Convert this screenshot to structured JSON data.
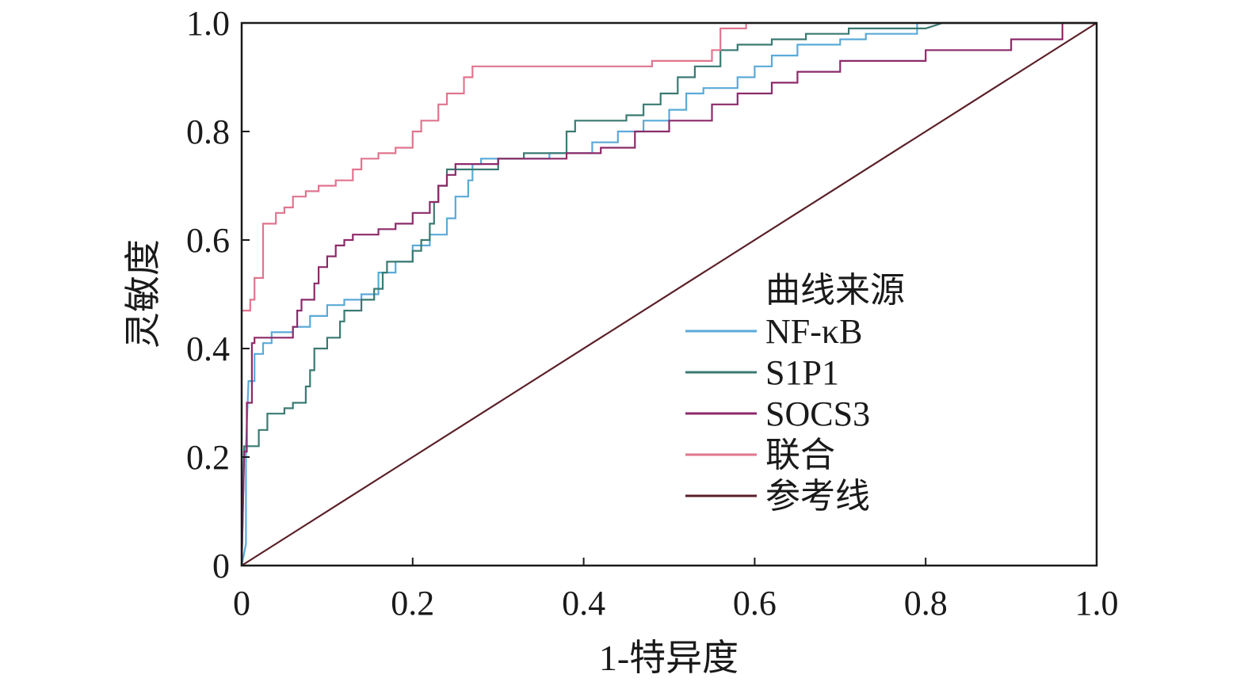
{
  "chart_data": {
    "type": "line",
    "xlabel": "1-特异度",
    "ylabel": "灵敏度",
    "xlim": [
      0,
      1
    ],
    "ylim": [
      0,
      1
    ],
    "x_ticks": [
      "0",
      "0.2",
      "0.4",
      "0.6",
      "0.8",
      "1.0"
    ],
    "y_ticks": [
      "0",
      "0.2",
      "0.4",
      "0.6",
      "0.8",
      "1.0"
    ],
    "grid": false,
    "legend": {
      "title": "曲线来源",
      "position": "right"
    },
    "series": [
      {
        "name": "NF-κB",
        "color": "#5aaad8",
        "points": [
          [
            0,
            0
          ],
          [
            0.005,
            0.04
          ],
          [
            0.005,
            0.22
          ],
          [
            0.008,
            0.34
          ],
          [
            0.015,
            0.34
          ],
          [
            0.015,
            0.39
          ],
          [
            0.025,
            0.39
          ],
          [
            0.025,
            0.41
          ],
          [
            0.035,
            0.41
          ],
          [
            0.035,
            0.43
          ],
          [
            0.06,
            0.43
          ],
          [
            0.06,
            0.44
          ],
          [
            0.08,
            0.44
          ],
          [
            0.08,
            0.46
          ],
          [
            0.1,
            0.46
          ],
          [
            0.1,
            0.48
          ],
          [
            0.12,
            0.48
          ],
          [
            0.12,
            0.49
          ],
          [
            0.14,
            0.49
          ],
          [
            0.14,
            0.5
          ],
          [
            0.16,
            0.5
          ],
          [
            0.16,
            0.54
          ],
          [
            0.18,
            0.54
          ],
          [
            0.18,
            0.56
          ],
          [
            0.2,
            0.56
          ],
          [
            0.2,
            0.59
          ],
          [
            0.22,
            0.59
          ],
          [
            0.22,
            0.61
          ],
          [
            0.24,
            0.61
          ],
          [
            0.24,
            0.64
          ],
          [
            0.25,
            0.64
          ],
          [
            0.25,
            0.68
          ],
          [
            0.265,
            0.68
          ],
          [
            0.265,
            0.71
          ],
          [
            0.27,
            0.71
          ],
          [
            0.27,
            0.74
          ],
          [
            0.28,
            0.74
          ],
          [
            0.28,
            0.75
          ],
          [
            0.3,
            0.75
          ],
          [
            0.36,
            0.75
          ],
          [
            0.36,
            0.76
          ],
          [
            0.4,
            0.76
          ],
          [
            0.41,
            0.76
          ],
          [
            0.41,
            0.78
          ],
          [
            0.44,
            0.78
          ],
          [
            0.44,
            0.8
          ],
          [
            0.47,
            0.8
          ],
          [
            0.47,
            0.82
          ],
          [
            0.5,
            0.82
          ],
          [
            0.5,
            0.84
          ],
          [
            0.52,
            0.84
          ],
          [
            0.52,
            0.87
          ],
          [
            0.54,
            0.87
          ],
          [
            0.54,
            0.88
          ],
          [
            0.58,
            0.88
          ],
          [
            0.58,
            0.9
          ],
          [
            0.6,
            0.9
          ],
          [
            0.6,
            0.92
          ],
          [
            0.62,
            0.92
          ],
          [
            0.62,
            0.94
          ],
          [
            0.65,
            0.94
          ],
          [
            0.65,
            0.96
          ],
          [
            0.7,
            0.96
          ],
          [
            0.7,
            0.97
          ],
          [
            0.73,
            0.97
          ],
          [
            0.73,
            0.98
          ],
          [
            0.79,
            0.98
          ],
          [
            0.79,
            1
          ],
          [
            1,
            1
          ]
        ]
      },
      {
        "name": "S1P1",
        "color": "#3a7a72",
        "points": [
          [
            0,
            0
          ],
          [
            0.003,
            0.22
          ],
          [
            0.02,
            0.22
          ],
          [
            0.02,
            0.25
          ],
          [
            0.03,
            0.25
          ],
          [
            0.03,
            0.28
          ],
          [
            0.05,
            0.28
          ],
          [
            0.05,
            0.29
          ],
          [
            0.06,
            0.29
          ],
          [
            0.06,
            0.3
          ],
          [
            0.075,
            0.3
          ],
          [
            0.075,
            0.33
          ],
          [
            0.08,
            0.33
          ],
          [
            0.08,
            0.36
          ],
          [
            0.085,
            0.36
          ],
          [
            0.085,
            0.4
          ],
          [
            0.1,
            0.4
          ],
          [
            0.1,
            0.42
          ],
          [
            0.115,
            0.42
          ],
          [
            0.115,
            0.45
          ],
          [
            0.12,
            0.45
          ],
          [
            0.12,
            0.47
          ],
          [
            0.14,
            0.47
          ],
          [
            0.14,
            0.49
          ],
          [
            0.155,
            0.49
          ],
          [
            0.155,
            0.51
          ],
          [
            0.165,
            0.51
          ],
          [
            0.165,
            0.54
          ],
          [
            0.17,
            0.54
          ],
          [
            0.17,
            0.56
          ],
          [
            0.2,
            0.56
          ],
          [
            0.2,
            0.58
          ],
          [
            0.21,
            0.58
          ],
          [
            0.21,
            0.6
          ],
          [
            0.22,
            0.6
          ],
          [
            0.22,
            0.63
          ],
          [
            0.225,
            0.63
          ],
          [
            0.225,
            0.67
          ],
          [
            0.23,
            0.67
          ],
          [
            0.23,
            0.7
          ],
          [
            0.24,
            0.7
          ],
          [
            0.24,
            0.73
          ],
          [
            0.3,
            0.73
          ],
          [
            0.3,
            0.75
          ],
          [
            0.33,
            0.75
          ],
          [
            0.33,
            0.76
          ],
          [
            0.38,
            0.76
          ],
          [
            0.38,
            0.8
          ],
          [
            0.39,
            0.8
          ],
          [
            0.39,
            0.82
          ],
          [
            0.45,
            0.82
          ],
          [
            0.45,
            0.83
          ],
          [
            0.47,
            0.83
          ],
          [
            0.47,
            0.85
          ],
          [
            0.49,
            0.85
          ],
          [
            0.49,
            0.87
          ],
          [
            0.51,
            0.87
          ],
          [
            0.51,
            0.9
          ],
          [
            0.53,
            0.9
          ],
          [
            0.53,
            0.92
          ],
          [
            0.56,
            0.92
          ],
          [
            0.56,
            0.95
          ],
          [
            0.58,
            0.95
          ],
          [
            0.58,
            0.96
          ],
          [
            0.62,
            0.96
          ],
          [
            0.62,
            0.97
          ],
          [
            0.66,
            0.97
          ],
          [
            0.66,
            0.98
          ],
          [
            0.71,
            0.98
          ],
          [
            0.71,
            0.99
          ],
          [
            0.8,
            0.99
          ],
          [
            0.82,
            1
          ],
          [
            1,
            1
          ]
        ]
      },
      {
        "name": "SOCS3",
        "color": "#8c2a6a",
        "points": [
          [
            0,
            0
          ],
          [
            0.003,
            0.21
          ],
          [
            0.006,
            0.21
          ],
          [
            0.006,
            0.3
          ],
          [
            0.012,
            0.3
          ],
          [
            0.012,
            0.41
          ],
          [
            0.015,
            0.41
          ],
          [
            0.015,
            0.42
          ],
          [
            0.06,
            0.42
          ],
          [
            0.06,
            0.44
          ],
          [
            0.065,
            0.44
          ],
          [
            0.065,
            0.47
          ],
          [
            0.07,
            0.47
          ],
          [
            0.07,
            0.49
          ],
          [
            0.085,
            0.49
          ],
          [
            0.085,
            0.52
          ],
          [
            0.09,
            0.52
          ],
          [
            0.09,
            0.55
          ],
          [
            0.1,
            0.55
          ],
          [
            0.1,
            0.57
          ],
          [
            0.11,
            0.57
          ],
          [
            0.11,
            0.59
          ],
          [
            0.12,
            0.59
          ],
          [
            0.12,
            0.6
          ],
          [
            0.13,
            0.6
          ],
          [
            0.13,
            0.61
          ],
          [
            0.16,
            0.61
          ],
          [
            0.16,
            0.62
          ],
          [
            0.18,
            0.62
          ],
          [
            0.18,
            0.63
          ],
          [
            0.2,
            0.63
          ],
          [
            0.2,
            0.65
          ],
          [
            0.22,
            0.65
          ],
          [
            0.22,
            0.67
          ],
          [
            0.23,
            0.67
          ],
          [
            0.23,
            0.7
          ],
          [
            0.24,
            0.7
          ],
          [
            0.24,
            0.72
          ],
          [
            0.25,
            0.72
          ],
          [
            0.25,
            0.74
          ],
          [
            0.3,
            0.74
          ],
          [
            0.3,
            0.75
          ],
          [
            0.38,
            0.75
          ],
          [
            0.38,
            0.76
          ],
          [
            0.42,
            0.76
          ],
          [
            0.42,
            0.77
          ],
          [
            0.46,
            0.77
          ],
          [
            0.46,
            0.8
          ],
          [
            0.5,
            0.8
          ],
          [
            0.5,
            0.82
          ],
          [
            0.55,
            0.82
          ],
          [
            0.55,
            0.85
          ],
          [
            0.58,
            0.85
          ],
          [
            0.58,
            0.87
          ],
          [
            0.62,
            0.87
          ],
          [
            0.62,
            0.89
          ],
          [
            0.65,
            0.89
          ],
          [
            0.65,
            0.91
          ],
          [
            0.7,
            0.91
          ],
          [
            0.7,
            0.93
          ],
          [
            0.8,
            0.93
          ],
          [
            0.8,
            0.95
          ],
          [
            0.9,
            0.95
          ],
          [
            0.9,
            0.97
          ],
          [
            0.96,
            0.97
          ],
          [
            0.96,
            1
          ],
          [
            1,
            1
          ]
        ]
      },
      {
        "name": "联合",
        "color": "#e0758e",
        "points": [
          [
            0,
            0.47
          ],
          [
            0.01,
            0.47
          ],
          [
            0.01,
            0.49
          ],
          [
            0.015,
            0.49
          ],
          [
            0.015,
            0.53
          ],
          [
            0.025,
            0.53
          ],
          [
            0.025,
            0.63
          ],
          [
            0.04,
            0.63
          ],
          [
            0.04,
            0.65
          ],
          [
            0.05,
            0.65
          ],
          [
            0.05,
            0.66
          ],
          [
            0.06,
            0.66
          ],
          [
            0.06,
            0.68
          ],
          [
            0.075,
            0.68
          ],
          [
            0.075,
            0.69
          ],
          [
            0.09,
            0.69
          ],
          [
            0.09,
            0.7
          ],
          [
            0.11,
            0.7
          ],
          [
            0.11,
            0.71
          ],
          [
            0.13,
            0.71
          ],
          [
            0.13,
            0.73
          ],
          [
            0.14,
            0.73
          ],
          [
            0.14,
            0.75
          ],
          [
            0.16,
            0.75
          ],
          [
            0.16,
            0.76
          ],
          [
            0.18,
            0.76
          ],
          [
            0.18,
            0.77
          ],
          [
            0.2,
            0.77
          ],
          [
            0.2,
            0.8
          ],
          [
            0.21,
            0.8
          ],
          [
            0.21,
            0.82
          ],
          [
            0.23,
            0.82
          ],
          [
            0.23,
            0.85
          ],
          [
            0.24,
            0.85
          ],
          [
            0.24,
            0.87
          ],
          [
            0.26,
            0.87
          ],
          [
            0.26,
            0.9
          ],
          [
            0.27,
            0.9
          ],
          [
            0.27,
            0.92
          ],
          [
            0.28,
            0.92
          ],
          [
            0.48,
            0.92
          ],
          [
            0.48,
            0.93
          ],
          [
            0.55,
            0.93
          ],
          [
            0.55,
            0.95
          ],
          [
            0.56,
            0.95
          ],
          [
            0.56,
            0.99
          ],
          [
            0.59,
            0.99
          ],
          [
            0.59,
            1
          ],
          [
            1,
            1
          ]
        ]
      },
      {
        "name": "参考线",
        "color": "#5a1f28",
        "points": [
          [
            0,
            0
          ],
          [
            1,
            1
          ]
        ]
      }
    ]
  }
}
